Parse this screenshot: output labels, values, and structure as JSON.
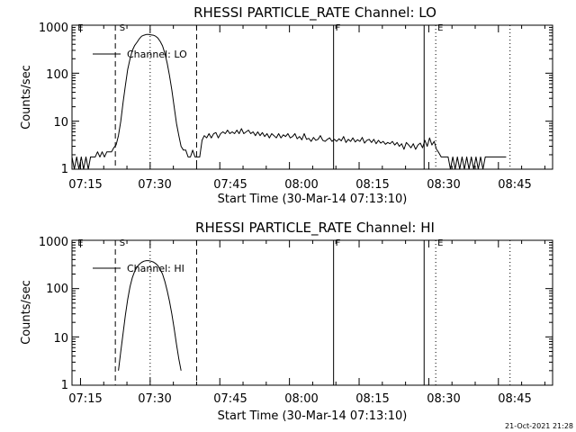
{
  "footer_timestamp": "21-Oct-2021 21:28",
  "chart_data": [
    {
      "type": "line",
      "title": "RHESSI PARTICLE_RATE Channel: LO",
      "xlabel": "Start Time (30-Mar-14 07:13:10)",
      "ylabel": "Counts/sec",
      "y_scale": "log",
      "ylim": [
        1,
        1000
      ],
      "xlim": [
        "07:13:10",
        "08:56:40"
      ],
      "x_ticks": [
        "07:15",
        "07:30",
        "07:45",
        "08:00",
        "08:15",
        "08:30",
        "08:45"
      ],
      "y_ticks": [
        "1",
        "10",
        "100",
        "1000"
      ],
      "legend": "Channel: LO",
      "legend_position": "top-left",
      "markers": {
        "dashed": [
          "07:22:30",
          "07:40:00"
        ],
        "solid": [
          "08:09:30",
          "08:29:00"
        ],
        "dotted": [
          "07:30:00",
          "08:31:30",
          "08:47:30"
        ],
        "labels": [
          {
            "text": "E",
            "at": "07:14:00"
          },
          {
            "text": "S",
            "at": "07:23:00"
          },
          {
            "text": "F",
            "at": "08:09:30"
          },
          {
            "text": "E",
            "at": "08:31:30"
          }
        ]
      },
      "series": [
        {
          "name": "Channel: LO",
          "points": [
            [
              "07:13:10",
              1.8
            ],
            [
              "07:13:40",
              1
            ],
            [
              "07:14:10",
              1.8
            ],
            [
              "07:14:40",
              1
            ],
            [
              "07:15:10",
              1.8
            ],
            [
              "07:15:40",
              1
            ],
            [
              "07:16:10",
              1.8
            ],
            [
              "07:16:40",
              1
            ],
            [
              "07:17:10",
              1.8
            ],
            [
              "07:17:40",
              1.8
            ],
            [
              "07:18:10",
              1.8
            ],
            [
              "07:18:40",
              2.3
            ],
            [
              "07:19:10",
              1.8
            ],
            [
              "07:19:40",
              2.3
            ],
            [
              "07:20:10",
              1.8
            ],
            [
              "07:20:40",
              2.3
            ],
            [
              "07:21:10",
              2.3
            ],
            [
              "07:21:40",
              2.3
            ],
            [
              "07:22:10",
              2.8
            ],
            [
              "07:22:40",
              3.2
            ],
            [
              "07:23:10",
              5
            ],
            [
              "07:23:40",
              10
            ],
            [
              "07:24:10",
              25
            ],
            [
              "07:24:40",
              55
            ],
            [
              "07:25:10",
              120
            ],
            [
              "07:25:40",
              200
            ],
            [
              "07:26:10",
              300
            ],
            [
              "07:26:40",
              380
            ],
            [
              "07:27:10",
              440
            ],
            [
              "07:27:40",
              520
            ],
            [
              "07:28:10",
              590
            ],
            [
              "07:28:40",
              620
            ],
            [
              "07:29:10",
              640
            ],
            [
              "07:29:40",
              640
            ],
            [
              "07:30:10",
              630
            ],
            [
              "07:30:40",
              620
            ],
            [
              "07:31:10",
              590
            ],
            [
              "07:31:40",
              540
            ],
            [
              "07:32:10",
              460
            ],
            [
              "07:32:40",
              370
            ],
            [
              "07:33:10",
              260
            ],
            [
              "07:33:40",
              160
            ],
            [
              "07:34:10",
              90
            ],
            [
              "07:34:40",
              45
            ],
            [
              "07:35:10",
              20
            ],
            [
              "07:35:40",
              9
            ],
            [
              "07:36:10",
              5
            ],
            [
              "07:36:40",
              3
            ],
            [
              "07:37:10",
              2.5
            ],
            [
              "07:37:40",
              2.5
            ],
            [
              "07:38:10",
              1.8
            ],
            [
              "07:38:40",
              1.8
            ],
            [
              "07:39:10",
              2.5
            ],
            [
              "07:39:40",
              1.8
            ],
            [
              "07:40:10",
              1.8
            ],
            [
              "07:40:40",
              1.8
            ],
            [
              "07:41:10",
              4
            ],
            [
              "07:41:40",
              5
            ],
            [
              "07:42:10",
              4.5
            ],
            [
              "07:42:40",
              5.5
            ],
            [
              "07:43:10",
              4.5
            ],
            [
              "07:43:40",
              5.5
            ],
            [
              "07:44:10",
              5.8
            ],
            [
              "07:44:40",
              4.5
            ],
            [
              "07:45:10",
              5.5
            ],
            [
              "07:45:40",
              6
            ],
            [
              "07:46:10",
              5.5
            ],
            [
              "07:46:40",
              6.5
            ],
            [
              "07:47:10",
              5.5
            ],
            [
              "07:47:40",
              6
            ],
            [
              "07:48:10",
              5.5
            ],
            [
              "07:48:40",
              6.5
            ],
            [
              "07:49:10",
              5.5
            ],
            [
              "07:49:40",
              7
            ],
            [
              "07:50:10",
              5.5
            ],
            [
              "07:50:40",
              6
            ],
            [
              "07:51:10",
              6.5
            ],
            [
              "07:51:40",
              5.5
            ],
            [
              "07:52:10",
              6
            ],
            [
              "07:52:40",
              5
            ],
            [
              "07:53:10",
              6
            ],
            [
              "07:53:40",
              5
            ],
            [
              "07:54:10",
              5.8
            ],
            [
              "07:54:40",
              4.8
            ],
            [
              "07:55:10",
              5.5
            ],
            [
              "07:55:40",
              4.5
            ],
            [
              "07:56:10",
              5.5
            ],
            [
              "07:56:40",
              5
            ],
            [
              "07:57:10",
              4.5
            ],
            [
              "07:57:40",
              5.5
            ],
            [
              "07:58:10",
              4.5
            ],
            [
              "07:58:40",
              5.2
            ],
            [
              "07:59:10",
              4.8
            ],
            [
              "07:59:40",
              5.5
            ],
            [
              "08:00:10",
              4.5
            ],
            [
              "08:00:40",
              4.8
            ],
            [
              "08:01:10",
              5.5
            ],
            [
              "08:01:40",
              4.3
            ],
            [
              "08:02:10",
              4.8
            ],
            [
              "08:02:40",
              4.1
            ],
            [
              "08:03:10",
              5.5
            ],
            [
              "08:03:40",
              4.2
            ],
            [
              "08:04:10",
              4.4
            ],
            [
              "08:04:40",
              3.8
            ],
            [
              "08:05:10",
              4.6
            ],
            [
              "08:05:40",
              4
            ],
            [
              "08:06:10",
              4.2
            ],
            [
              "08:06:40",
              5
            ],
            [
              "08:07:10",
              4
            ],
            [
              "08:07:40",
              3.8
            ],
            [
              "08:08:10",
              4.2
            ],
            [
              "08:08:40",
              4.5
            ],
            [
              "08:09:10",
              3.8
            ],
            [
              "08:09:40",
              4.2
            ],
            [
              "08:10:10",
              3.8
            ],
            [
              "08:10:40",
              4.3
            ],
            [
              "08:11:10",
              3.9
            ],
            [
              "08:11:40",
              4.8
            ],
            [
              "08:12:10",
              3.6
            ],
            [
              "08:12:40",
              4.2
            ],
            [
              "08:13:10",
              3.8
            ],
            [
              "08:13:40",
              4.5
            ],
            [
              "08:14:10",
              3.7
            ],
            [
              "08:14:40",
              4.1
            ],
            [
              "08:15:10",
              3.8
            ],
            [
              "08:15:40",
              4.6
            ],
            [
              "08:16:10",
              3.5
            ],
            [
              "08:16:40",
              4
            ],
            [
              "08:17:10",
              4.2
            ],
            [
              "08:17:40",
              3.6
            ],
            [
              "08:18:10",
              4.2
            ],
            [
              "08:18:40",
              3.4
            ],
            [
              "08:19:10",
              4
            ],
            [
              "08:19:40",
              3.5
            ],
            [
              "08:20:10",
              3.8
            ],
            [
              "08:20:40",
              3.3
            ],
            [
              "08:21:10",
              3.6
            ],
            [
              "08:21:40",
              3.4
            ],
            [
              "08:22:10",
              3.8
            ],
            [
              "08:22:40",
              3.2
            ],
            [
              "08:23:10",
              3.6
            ],
            [
              "08:23:40",
              3
            ],
            [
              "08:24:10",
              3.4
            ],
            [
              "08:24:40",
              2.6
            ],
            [
              "08:25:10",
              3.6
            ],
            [
              "08:25:40",
              3.2
            ],
            [
              "08:26:10",
              2.8
            ],
            [
              "08:26:40",
              3.4
            ],
            [
              "08:27:10",
              2.6
            ],
            [
              "08:27:40",
              3.2
            ],
            [
              "08:28:10",
              3.5
            ],
            [
              "08:28:40",
              2.8
            ],
            [
              "08:29:10",
              4
            ],
            [
              "08:29:40",
              3
            ],
            [
              "08:30:10",
              4.5
            ],
            [
              "08:30:40",
              3.2
            ],
            [
              "08:31:10",
              3.8
            ],
            [
              "08:31:40",
              2.6
            ],
            [
              "08:32:10",
              2.2
            ],
            [
              "08:32:40",
              1.8
            ],
            [
              "08:33:10",
              1.8
            ],
            [
              "08:33:40",
              1.8
            ],
            [
              "08:34:10",
              1.8
            ],
            [
              "08:34:40",
              1
            ],
            [
              "08:35:10",
              1.8
            ],
            [
              "08:35:40",
              1
            ],
            [
              "08:36:10",
              1.8
            ],
            [
              "08:36:40",
              1
            ],
            [
              "08:37:10",
              1.8
            ],
            [
              "08:37:40",
              1
            ],
            [
              "08:38:10",
              1.8
            ],
            [
              "08:38:40",
              1
            ],
            [
              "08:39:10",
              1.8
            ],
            [
              "08:39:40",
              1
            ],
            [
              "08:40:10",
              1.8
            ],
            [
              "08:40:40",
              1
            ],
            [
              "08:41:10",
              1.8
            ],
            [
              "08:41:40",
              1
            ],
            [
              "08:42:10",
              1.8
            ],
            [
              "08:42:40",
              1.8
            ],
            [
              "08:43:10",
              1.8
            ],
            [
              "08:43:40",
              1.8
            ],
            [
              "08:44:10",
              1.8
            ],
            [
              "08:44:40",
              1.8
            ],
            [
              "08:45:10",
              1.8
            ],
            [
              "08:45:40",
              1.8
            ],
            [
              "08:46:10",
              1.8
            ],
            [
              "08:46:40",
              1.8
            ]
          ]
        }
      ]
    },
    {
      "type": "line",
      "title": "RHESSI PARTICLE_RATE Channel: HI",
      "xlabel": "Start Time (30-Mar-14 07:13:10)",
      "ylabel": "Counts/sec",
      "y_scale": "log",
      "ylim": [
        1,
        1000
      ],
      "xlim": [
        "07:13:10",
        "08:56:40"
      ],
      "x_ticks": [
        "07:15",
        "07:30",
        "07:45",
        "08:00",
        "08:15",
        "08:30",
        "08:45"
      ],
      "y_ticks": [
        "1",
        "10",
        "100",
        "1000"
      ],
      "legend": "Channel: HI",
      "legend_position": "top-left",
      "markers": {
        "dashed": [
          "07:22:30",
          "07:40:00"
        ],
        "solid": [
          "08:09:30",
          "08:29:00"
        ],
        "dotted": [
          "07:30:00",
          "08:31:30",
          "08:47:30"
        ],
        "labels": [
          {
            "text": "E",
            "at": "07:14:00"
          },
          {
            "text": "S",
            "at": "07:23:00"
          },
          {
            "text": "F",
            "at": "08:09:30"
          },
          {
            "text": "E",
            "at": "08:31:30"
          }
        ]
      },
      "series": [
        {
          "name": "Channel: HI",
          "points": [
            [
              "07:23:10",
              2
            ],
            [
              "07:23:40",
              5
            ],
            [
              "07:24:10",
              12
            ],
            [
              "07:24:40",
              28
            ],
            [
              "07:25:10",
              60
            ],
            [
              "07:25:40",
              110
            ],
            [
              "07:26:10",
              170
            ],
            [
              "07:26:40",
              230
            ],
            [
              "07:27:10",
              280
            ],
            [
              "07:27:40",
              320
            ],
            [
              "07:28:10",
              350
            ],
            [
              "07:28:40",
              370
            ],
            [
              "07:29:10",
              380
            ],
            [
              "07:29:40",
              380
            ],
            [
              "07:30:10",
              370
            ],
            [
              "07:30:40",
              355
            ],
            [
              "07:31:10",
              330
            ],
            [
              "07:31:40",
              300
            ],
            [
              "07:32:10",
              250
            ],
            [
              "07:32:40",
              200
            ],
            [
              "07:33:10",
              140
            ],
            [
              "07:33:40",
              90
            ],
            [
              "07:34:10",
              55
            ],
            [
              "07:34:40",
              30
            ],
            [
              "07:35:10",
              15
            ],
            [
              "07:35:40",
              7
            ],
            [
              "07:36:10",
              3.5
            ],
            [
              "07:36:40",
              2
            ]
          ]
        }
      ]
    }
  ]
}
